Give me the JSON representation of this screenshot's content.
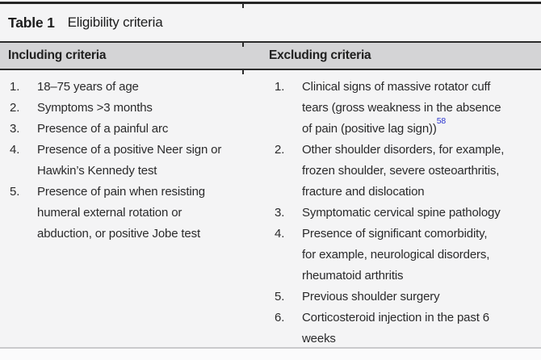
{
  "table": {
    "label": "Table 1",
    "caption": "Eligibility criteria",
    "columns": [
      {
        "header": "Including criteria",
        "items": [
          {
            "num": "1.",
            "text": "18–75 years of age"
          },
          {
            "num": "2.",
            "text": "Symptoms >3 months"
          },
          {
            "num": "3.",
            "text": "Presence of a painful arc"
          },
          {
            "num": "4.",
            "text": "Presence of a positive Neer sign or\nHawkin’s Kennedy test"
          },
          {
            "num": "5.",
            "text": "Presence of pain when resisting\nhumeral external rotation or\nabduction, or positive Jobe test"
          }
        ]
      },
      {
        "header": "Excluding criteria",
        "items": [
          {
            "num": "1.",
            "text": "Clinical signs of massive rotator cuff\ntears (gross weakness in the absence\nof pain (positive lag sign))",
            "ref": "58"
          },
          {
            "num": "2.",
            "text": "Other shoulder disorders, for example,\nfrozen shoulder, severe osteoarthritis,\nfracture and dislocation"
          },
          {
            "num": "3.",
            "text": "Symptomatic cervical spine pathology"
          },
          {
            "num": "4.",
            "text": "Presence of significant comorbidity,\nfor example, neurological disorders,\nrheumatoid arthritis"
          },
          {
            "num": "5.",
            "text": "Previous shoulder surgery"
          },
          {
            "num": "6.",
            "text": "Corticosteroid injection in the past 6\nweeks"
          }
        ]
      }
    ],
    "colors": {
      "header_band": "#d4d4d6",
      "rule_dark": "#262626",
      "rule_light": "#cacacc",
      "body_text": "#2a2a2b",
      "reference_blue": "#2b35d0"
    }
  }
}
